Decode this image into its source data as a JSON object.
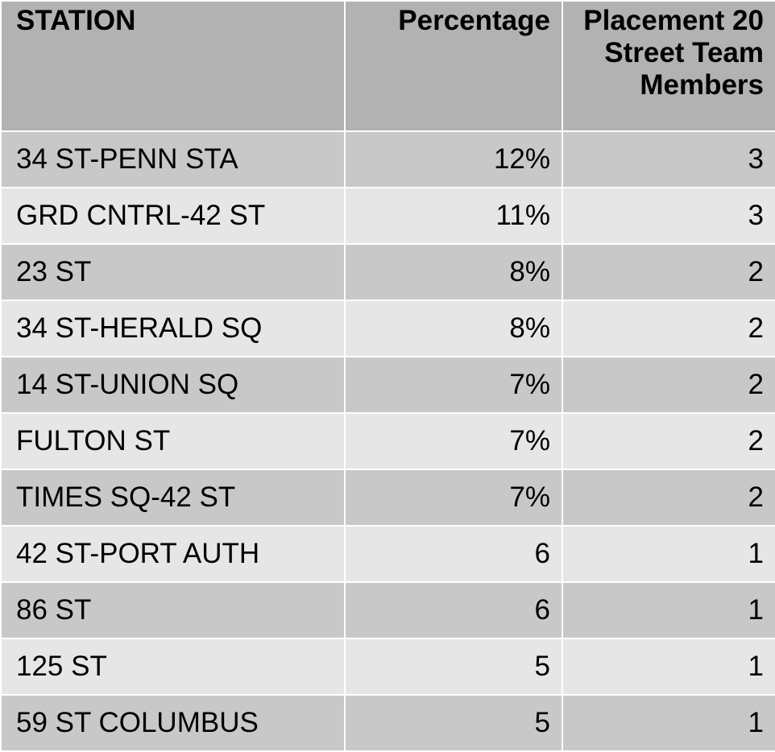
{
  "table": {
    "headers": [
      "STATION",
      "Percentage",
      "Placement 20 Street Team Members"
    ],
    "rows": [
      {
        "station": "34 ST-PENN STA",
        "percentage": "12%",
        "members": "3"
      },
      {
        "station": "GRD CNTRL-42 ST",
        "percentage": "11%",
        "members": "3"
      },
      {
        "station": "23 ST",
        "percentage": "8%",
        "members": "2"
      },
      {
        "station": "34 ST-HERALD SQ",
        "percentage": "8%",
        "members": "2"
      },
      {
        "station": "14 ST-UNION SQ",
        "percentage": "7%",
        "members": "2"
      },
      {
        "station": "FULTON ST",
        "percentage": "7%",
        "members": "2"
      },
      {
        "station": "TIMES SQ-42 ST",
        "percentage": "7%",
        "members": "2"
      },
      {
        "station": "42 ST-PORT AUTH",
        "percentage": "6",
        "members": "1"
      },
      {
        "station": "86 ST",
        "percentage": "6",
        "members": "1"
      },
      {
        "station": "125 ST",
        "percentage": "5",
        "members": "1"
      },
      {
        "station": "59 ST COLUMBUS",
        "percentage": "5",
        "members": "1"
      }
    ]
  },
  "colors": {
    "header_bg": "#b2b2b2",
    "row_dark": "#c8c8c8",
    "row_light": "#e6e6e6",
    "grid_lines": "#ffffff"
  }
}
